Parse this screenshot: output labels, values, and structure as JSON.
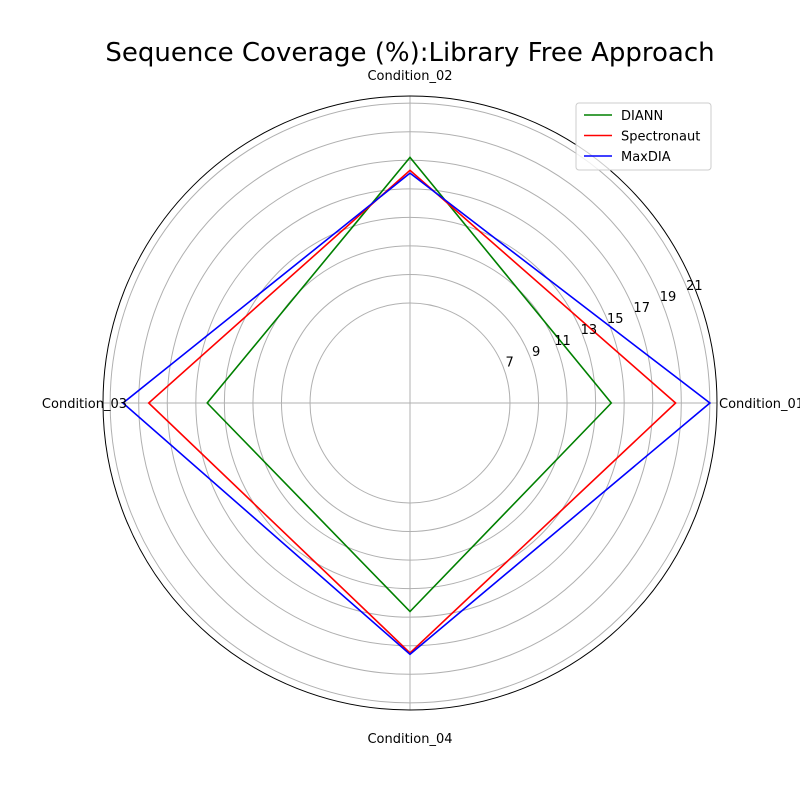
{
  "chart_data": {
    "type": "radar",
    "title": "Sequence Coverage (%):Library Free Approach",
    "categories": [
      "Condition_01",
      "Condition_02",
      "Condition_03",
      "Condition_04"
    ],
    "r_ticks": [
      7,
      9,
      11,
      13,
      15,
      17,
      19,
      21
    ],
    "r_range": [
      0,
      21.5
    ],
    "grid": true,
    "legend_position": "top-right",
    "series": [
      {
        "name": "DIANN",
        "color": "#008000",
        "values": [
          14.1,
          17.2,
          14.2,
          14.6
        ]
      },
      {
        "name": "Spectronaut",
        "color": "#ff0000",
        "values": [
          18.6,
          16.3,
          18.3,
          17.5
        ]
      },
      {
        "name": "MaxDIA",
        "color": "#0000ff",
        "values": [
          21.0,
          16.1,
          20.1,
          17.6
        ]
      }
    ]
  }
}
